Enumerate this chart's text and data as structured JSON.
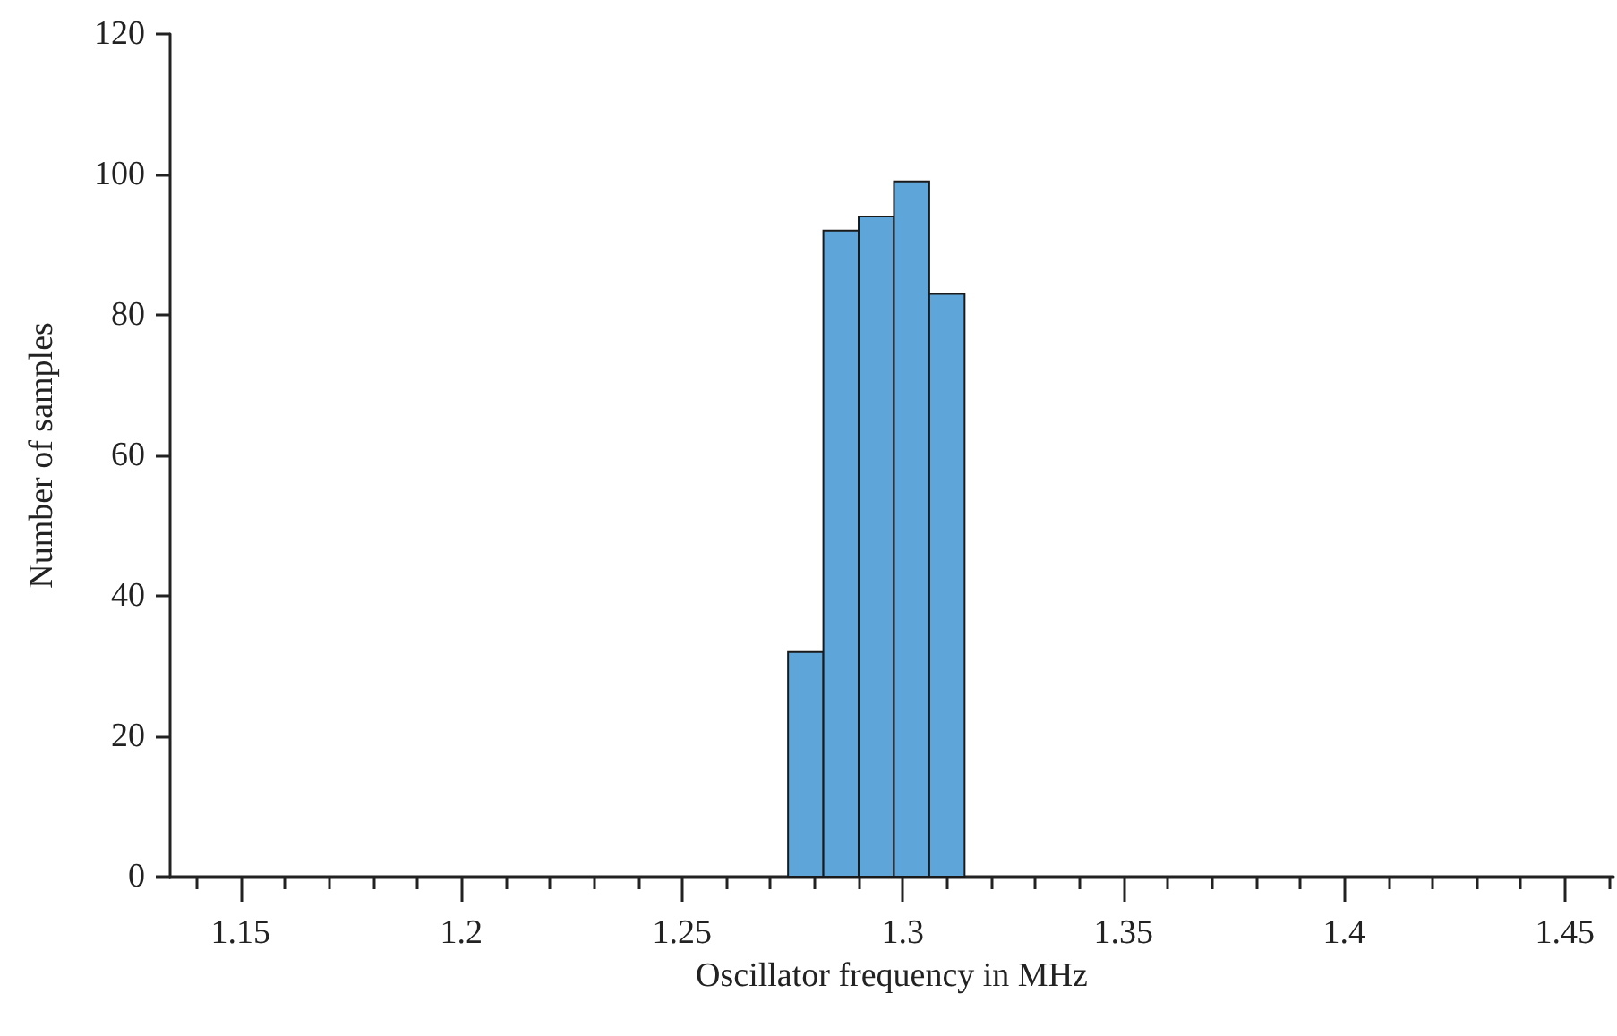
{
  "chart_data": {
    "type": "histogram",
    "xlabel": "Oscillator frequency in MHz",
    "ylabel": "Number of samples",
    "bins": [
      1.274,
      1.282,
      1.29,
      1.298,
      1.306,
      1.314
    ],
    "values": [
      32,
      92,
      94,
      99,
      83
    ],
    "color": "#5ea6d9",
    "xlim": [
      1.134,
      1.461
    ],
    "xticks": [
      {
        "value": 1.14,
        "label": null
      },
      1.15,
      {
        "value": 1.16,
        "label": null
      },
      {
        "value": 1.17,
        "label": null
      },
      {
        "value": 1.18,
        "label": null
      },
      {
        "value": 1.19,
        "label": null
      },
      1.2,
      {
        "value": 1.21,
        "label": null
      },
      {
        "value": 1.22,
        "label": null
      },
      {
        "value": 1.23,
        "label": null
      },
      {
        "value": 1.24,
        "label": null
      },
      1.25,
      {
        "value": 1.26,
        "label": null
      },
      {
        "value": 1.27,
        "label": null
      },
      {
        "value": 1.28,
        "label": null
      },
      {
        "value": 1.29,
        "label": null
      },
      1.3,
      {
        "value": 1.31,
        "label": null
      },
      {
        "value": 1.32,
        "label": null
      },
      {
        "value": 1.33,
        "label": null
      },
      {
        "value": 1.34,
        "label": null
      },
      1.35,
      {
        "value": 1.36,
        "label": null
      },
      {
        "value": 1.37,
        "label": null
      },
      {
        "value": 1.38,
        "label": null
      },
      {
        "value": 1.39,
        "label": null
      },
      1.4,
      {
        "value": 1.41,
        "label": null
      },
      {
        "value": 1.42,
        "label": null
      },
      {
        "value": 1.43,
        "label": null
      },
      {
        "value": 1.44,
        "label": null
      },
      1.45,
      {
        "value": 1.46,
        "label": null
      }
    ],
    "ylim": [
      0,
      120
    ],
    "yticks": [
      0,
      20,
      40,
      60,
      80,
      100,
      120
    ],
    "grid": false
  }
}
